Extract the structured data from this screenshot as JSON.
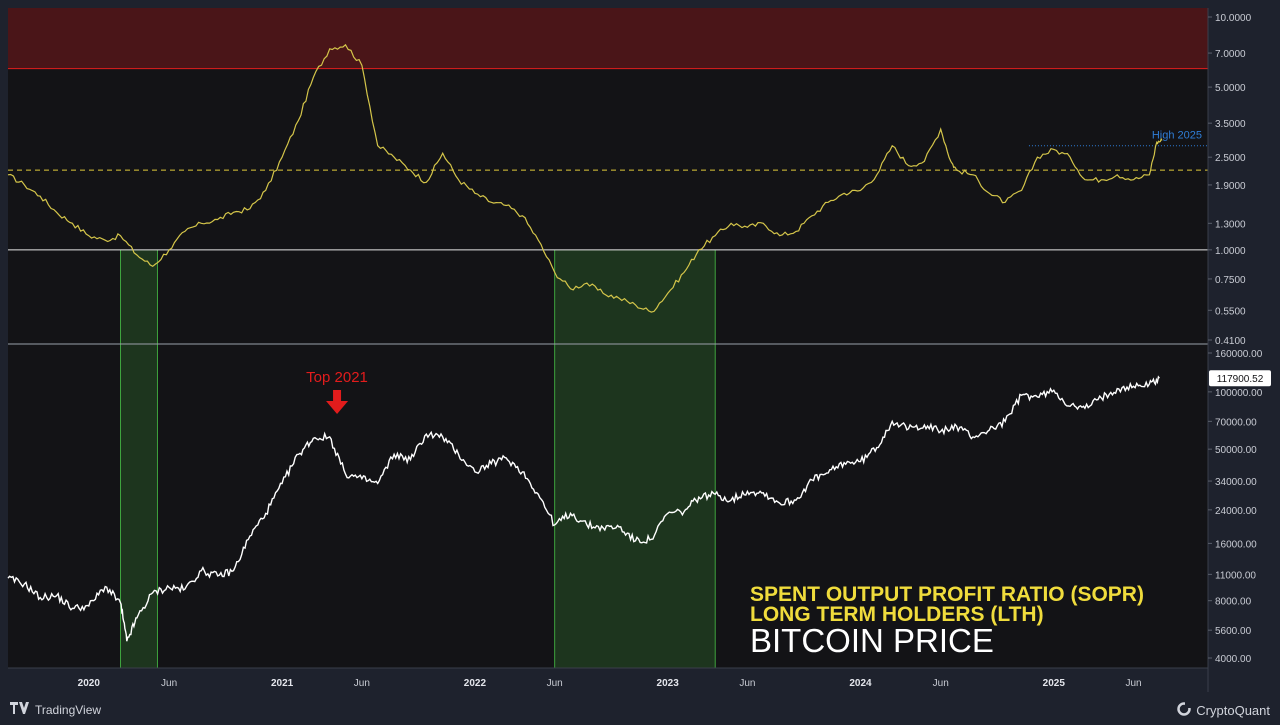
{
  "chart_data": [
    {
      "type": "line",
      "title": "SPENT OUTPUT PROFIT RATIO (SOPR)",
      "subtitle": "LONG TERM HOLDERS (LTH)",
      "scale": "log",
      "y_ticks": [
        "10.0000",
        "7.0000",
        "5.0000",
        "3.5000",
        "2.5000",
        "1.9000",
        "1.3000",
        "1.0000",
        "0.7500",
        "0.5500",
        "0.4100"
      ],
      "ylim": [
        0.41,
        10.0
      ],
      "color": "#d4c54a",
      "reference_lines": [
        {
          "value": 6.0,
          "color": "#e11d1d",
          "style": "solid"
        },
        {
          "value": 2.2,
          "color": "#e0c93a",
          "style": "dashed"
        },
        {
          "value": 1.0,
          "color": "#e6e6e6",
          "style": "solid"
        },
        {
          "value": 2.8,
          "color": "#2f7dd6",
          "style": "dotted",
          "label": "High 2025"
        }
      ],
      "x": [
        "2019-08-01",
        "2019-09-01",
        "2019-10-01",
        "2019-11-01",
        "2019-12-01",
        "2020-01-01",
        "2020-02-01",
        "2020-03-01",
        "2020-04-01",
        "2020-05-01",
        "2020-06-01",
        "2020-07-01",
        "2020-08-01",
        "2020-09-01",
        "2020-10-01",
        "2020-11-01",
        "2020-12-01",
        "2021-01-01",
        "2021-02-01",
        "2021-03-01",
        "2021-04-01",
        "2021-05-01",
        "2021-06-01",
        "2021-07-01",
        "2021-08-01",
        "2021-09-01",
        "2021-10-01",
        "2021-11-01",
        "2021-12-01",
        "2022-01-01",
        "2022-02-01",
        "2022-03-01",
        "2022-04-01",
        "2022-05-01",
        "2022-06-01",
        "2022-07-01",
        "2022-08-01",
        "2022-09-01",
        "2022-10-01",
        "2022-11-01",
        "2022-12-01",
        "2023-01-01",
        "2023-02-01",
        "2023-03-01",
        "2023-04-01",
        "2023-05-01",
        "2023-06-01",
        "2023-07-01",
        "2023-08-01",
        "2023-09-01",
        "2023-10-01",
        "2023-11-01",
        "2023-12-01",
        "2024-01-01",
        "2024-02-01",
        "2024-03-01",
        "2024-04-01",
        "2024-05-01",
        "2024-06-01",
        "2024-06-20",
        "2024-07-01",
        "2024-08-01",
        "2024-09-01",
        "2024-10-01",
        "2024-11-01",
        "2024-12-01",
        "2025-01-01",
        "2025-02-01",
        "2025-03-01",
        "2025-04-01",
        "2025-05-01",
        "2025-06-01",
        "2025-07-01",
        "2025-07-15",
        "2025-07-25"
      ],
      "values": [
        2.1,
        1.9,
        1.7,
        1.45,
        1.3,
        1.15,
        1.1,
        1.15,
        0.95,
        0.85,
        1.0,
        1.2,
        1.3,
        1.35,
        1.45,
        1.5,
        1.8,
        2.5,
        3.6,
        5.5,
        7.3,
        7.6,
        6.2,
        2.8,
        2.5,
        2.2,
        1.95,
        2.6,
        2.0,
        1.75,
        1.6,
        1.55,
        1.4,
        1.1,
        0.8,
        0.68,
        0.72,
        0.65,
        0.62,
        0.58,
        0.54,
        0.65,
        0.8,
        1.0,
        1.15,
        1.3,
        1.25,
        1.3,
        1.15,
        1.2,
        1.4,
        1.6,
        1.75,
        1.8,
        2.1,
        2.8,
        2.3,
        2.4,
        3.3,
        2.4,
        2.2,
        2.1,
        1.75,
        1.6,
        1.8,
        2.5,
        2.7,
        2.5,
        2.0,
        2.0,
        2.1,
        2.0,
        2.1,
        2.9,
        2.95
      ]
    },
    {
      "type": "line",
      "title": "BITCOIN PRICE",
      "scale": "log",
      "y_ticks": [
        "160000.00",
        "100000.00",
        "70000.00",
        "50000.00",
        "34000.00",
        "24000.00",
        "16000.00",
        "11000.00",
        "8000.00",
        "5600.00",
        "4000.00"
      ],
      "ylim": [
        4000,
        160000
      ],
      "last_value": "117900.52",
      "color": "#ffffff",
      "annotation": {
        "text": "Top 2021",
        "date": "2021-04-15",
        "color": "#e21c1c"
      },
      "x": [
        "2019-08-01",
        "2019-09-01",
        "2019-10-01",
        "2019-11-01",
        "2019-12-01",
        "2020-01-01",
        "2020-02-01",
        "2020-03-01",
        "2020-03-13",
        "2020-04-01",
        "2020-05-01",
        "2020-06-01",
        "2020-07-01",
        "2020-08-01",
        "2020-09-01",
        "2020-10-01",
        "2020-11-01",
        "2020-12-01",
        "2021-01-01",
        "2021-02-01",
        "2021-03-01",
        "2021-04-01",
        "2021-05-01",
        "2021-06-01",
        "2021-07-01",
        "2021-08-01",
        "2021-09-01",
        "2021-10-01",
        "2021-11-01",
        "2021-12-01",
        "2022-01-01",
        "2022-02-01",
        "2022-03-01",
        "2022-04-01",
        "2022-05-01",
        "2022-06-01",
        "2022-07-01",
        "2022-08-01",
        "2022-09-01",
        "2022-10-01",
        "2022-11-01",
        "2022-12-01",
        "2023-01-01",
        "2023-02-01",
        "2023-03-01",
        "2023-04-01",
        "2023-05-01",
        "2023-06-01",
        "2023-07-01",
        "2023-08-01",
        "2023-09-01",
        "2023-10-01",
        "2023-11-01",
        "2023-12-01",
        "2024-01-01",
        "2024-02-01",
        "2024-03-01",
        "2024-04-01",
        "2024-05-01",
        "2024-06-01",
        "2024-07-01",
        "2024-08-01",
        "2024-09-01",
        "2024-10-01",
        "2024-11-01",
        "2024-12-01",
        "2025-01-01",
        "2025-02-01",
        "2025-03-01",
        "2025-04-01",
        "2025-05-01",
        "2025-06-01",
        "2025-07-01",
        "2025-07-20"
      ],
      "values": [
        10500,
        9800,
        8300,
        8500,
        7300,
        7500,
        9500,
        7800,
        4900,
        6500,
        8800,
        9400,
        9200,
        11500,
        10800,
        11500,
        17500,
        23000,
        33000,
        47000,
        57000,
        58000,
        37000,
        35000,
        33000,
        47000,
        44000,
        60000,
        58000,
        47000,
        38000,
        42000,
        45000,
        38000,
        29000,
        20000,
        23000,
        20000,
        19300,
        19500,
        16500,
        16800,
        23000,
        23500,
        28000,
        29000,
        27000,
        30000,
        29500,
        26000,
        27000,
        34500,
        37500,
        42500,
        43000,
        51000,
        70000,
        64000,
        67000,
        62000,
        66000,
        58000,
        63000,
        70000,
        96000,
        94000,
        102000,
        84000,
        82000,
        93000,
        104000,
        107000,
        110000,
        117900
      ]
    }
  ],
  "shaded_periods": [
    {
      "start": "2020-03-01",
      "end": "2020-05-10"
    },
    {
      "start": "2022-06-01",
      "end": "2023-04-01"
    }
  ],
  "x_axis_labels": [
    {
      "text": "2020",
      "date": "2020-01-01",
      "kind": "year"
    },
    {
      "text": "Jun",
      "date": "2020-06-01",
      "kind": "month"
    },
    {
      "text": "2021",
      "date": "2021-01-01",
      "kind": "year"
    },
    {
      "text": "Jun",
      "date": "2021-06-01",
      "kind": "month"
    },
    {
      "text": "2022",
      "date": "2022-01-01",
      "kind": "year"
    },
    {
      "text": "Jun",
      "date": "2022-06-01",
      "kind": "month"
    },
    {
      "text": "2023",
      "date": "2023-01-01",
      "kind": "year"
    },
    {
      "text": "Jun",
      "date": "2023-06-01",
      "kind": "month"
    },
    {
      "text": "2024",
      "date": "2024-01-01",
      "kind": "year"
    },
    {
      "text": "Jun",
      "date": "2024-06-01",
      "kind": "month"
    },
    {
      "text": "2025",
      "date": "2025-01-01",
      "kind": "year"
    },
    {
      "text": "Jun",
      "date": "2025-06-01",
      "kind": "month"
    }
  ],
  "colors": {
    "background": "#131316",
    "page": "#1e222d",
    "danger_zone": "#4a1518",
    "shade": "#1f3a1f",
    "shade_border": "#3ea33e",
    "title_yellow": "#f0dc3c"
  },
  "footer": {
    "tradingview": "TradingView",
    "cryptoquant": "CryptoQuant"
  }
}
